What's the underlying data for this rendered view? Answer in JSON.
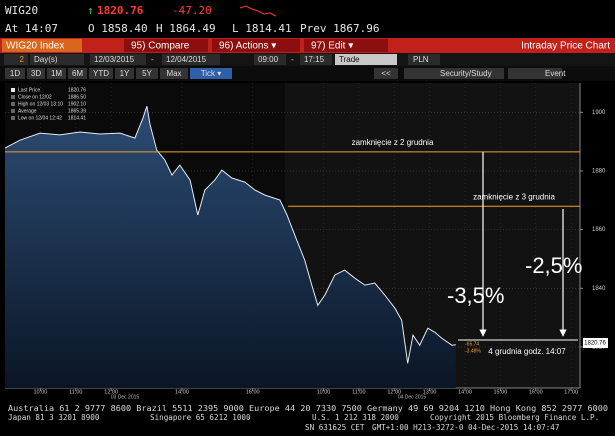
{
  "header": {
    "ticker": "WIG20",
    "arrow": "↑",
    "last": "1820.76",
    "change": "-47.20",
    "time": "At 14:07",
    "open": "O 1858.40",
    "high": "H 1864.49",
    "low": "L 1814.41",
    "prev": "Prev 1867.96"
  },
  "toolbar": {
    "security": "WIG20 Index",
    "buttons": [
      "95) Compare",
      "96) Actions ▾",
      "97) Edit ▾"
    ],
    "title": "Intraday Price Chart"
  },
  "range": {
    "period": "2",
    "unit": "Day(s)",
    "start": "12/03/2015",
    "sep": "-",
    "end": "12/04/2015",
    "from": "09:00",
    "sep2": "-",
    "to": "17:15",
    "field": "Trade",
    "currency": "PLN"
  },
  "periods": [
    "1D",
    "3D",
    "1M",
    "6M",
    "YTD",
    "1Y",
    "5Y",
    "Max",
    "Tick ▾"
  ],
  "tools": [
    "<<",
    "Security/Study",
    "Event"
  ],
  "chart_data": {
    "type": "line",
    "series": [
      {
        "name": "Last Price",
        "color": "#e4eaf4",
        "values": [
          1887.8,
          1890.5,
          1892.9,
          1892.3,
          1893.3,
          1892.6,
          1892.9,
          1891.2,
          1898.1,
          1902.1,
          1895.7,
          1887.1,
          1883.7,
          1878.6,
          1882.0,
          1876.9,
          1865.0,
          1873.5,
          1876.9,
          1880.3,
          1877.6,
          1876.2,
          1873.5,
          1871.8,
          1870.1,
          1865.0,
          1858.1,
          1849.6,
          1841.1,
          1834.2,
          1837.7,
          1844.5,
          1846.2,
          1843.4,
          1841.1,
          1841.8,
          1837.7,
          1833.2,
          1829.1,
          1814.41,
          1824.0,
          1820.6,
          1826.4,
          1825.0,
          1823.0,
          1820.6,
          1820.76
        ]
      }
    ],
    "x": [
      0,
      0.42,
      0.99,
      1.55,
      2.12,
      2.68,
      3.25,
      3.67,
      3.9,
      4.01,
      4.1,
      4.29,
      4.52,
      4.72,
      4.94,
      5.23,
      5.45,
      5.65,
      5.93,
      6.13,
      6.41,
      6.78,
      7.06,
      7.34,
      7.77,
      7.97,
      8.19,
      8.47,
      8.67,
      8.84,
      9.04,
      9.32,
      9.6,
      9.89,
      10.17,
      10.45,
      10.73,
      11.02,
      11.21,
      11.38,
      11.53,
      11.72,
      11.95,
      12.15,
      12.34,
      12.63,
      12.74
    ],
    "xlim": [
      0,
      16.25
    ],
    "xticks": [
      {
        "value": 1,
        "label": "10:00"
      },
      {
        "value": 2,
        "label": "11:00"
      },
      {
        "value": 3,
        "label": "12:00"
      },
      {
        "value": 5,
        "label": "14:00"
      },
      {
        "value": 7,
        "label": "16:00"
      },
      {
        "value": 9,
        "label": "10:00"
      },
      {
        "value": 10,
        "label": "11:00"
      },
      {
        "value": 11,
        "label": "12:00"
      },
      {
        "value": 12,
        "label": "13:00"
      },
      {
        "value": 13,
        "label": "14:00"
      },
      {
        "value": 14,
        "label": "15:00"
      },
      {
        "value": 15,
        "label": "16:00"
      },
      {
        "value": 16,
        "label": "17:00"
      }
    ],
    "days": [
      "03 Dec 2015",
      "04 Dec 2015"
    ],
    "ylim": [
      1806,
      1910
    ],
    "yticks": [
      1820,
      1840,
      1860,
      1880,
      1900
    ],
    "grid": true,
    "legend": [
      {
        "label": "Last Price",
        "value": "1820.76"
      },
      {
        "label": "Close on 12/02",
        "value": "1886.50"
      },
      {
        "label": "High on 12/03 13:10",
        "value": "1902.10"
      },
      {
        "label": "Average",
        "value": "1865.39"
      },
      {
        "label": "Low on 12/04 12:42",
        "value": "1814.41"
      }
    ],
    "reference_lines": [
      {
        "value": 1886.5,
        "from": 0,
        "label": "zamknięcie z 2 grudnia",
        "color": "#f0a030"
      },
      {
        "value": 1867.96,
        "from": 8,
        "label": "zamknięcie z 3 grudnia",
        "color": "#f0a030"
      }
    ],
    "last_tag": "1820.76",
    "change_tags": [
      "-65.74",
      "-3.48%"
    ],
    "annotations": [
      "-3,5%",
      "-2,5%",
      "4 grudnia godz. 14:07"
    ]
  },
  "footer": {
    "line1": "Australia 61 2 9777 8600 Brazil 5511 2395 9000 Europe 44 20 7330 7500 Germany 49 69 9204 1210 Hong Kong 852 2977 6000",
    "japan": "Japan 81 3 3201 8900",
    "singapore": "Singapore 65 6212 1000",
    "us": "U.S. 1 212 318 2000",
    "copyright": "Copyright 2015 Bloomberg Finance L.P.",
    "sn": "SN 631625 CET",
    "session": "GMT+1:00 H213-3272-0 04-Dec-2015 14:07:47"
  }
}
